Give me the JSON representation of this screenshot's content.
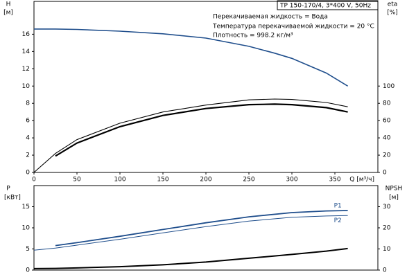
{
  "chart_data": [
    {
      "type": "line",
      "y_label": "H",
      "y_unit": "[м]",
      "y2_label": "eta",
      "y2_unit": "[%]",
      "x_label": "Q [м³/ч]",
      "annotations": [
        "TP 150-170/4, 3*400 V, 50Hz",
        "Перекачиваемая жидкость = Вода",
        "Температура перекачиваемой жидкости = 20 °C",
        "Плотность = 998.2 кг/м³"
      ],
      "xlim": [
        0,
        400
      ],
      "xticks": [
        0,
        50,
        100,
        150,
        200,
        250,
        300,
        350
      ],
      "ylim": [
        0,
        19.8
      ],
      "yticks": [
        0,
        2,
        4,
        6,
        8,
        10,
        12,
        14,
        16
      ],
      "y2lim": [
        0,
        198
      ],
      "y2ticks": [
        0,
        20,
        40,
        60,
        80,
        100
      ],
      "x": [
        0,
        25,
        50,
        100,
        150,
        200,
        250,
        280,
        300,
        340,
        365
      ],
      "series": [
        {
          "color": "#1f4e8c",
          "linewidth": 1.6,
          "values": [
            16.6,
            16.6,
            16.55,
            16.35,
            16.05,
            15.55,
            14.6,
            13.8,
            13.2,
            11.5,
            10.0
          ]
        },
        {
          "color": "#000000",
          "linewidth": 1.1,
          "axis": "y2",
          "values": [
            0,
            22,
            38,
            57,
            70,
            78,
            84,
            85,
            84.5,
            81,
            76
          ]
        },
        {
          "color": "#000000",
          "linewidth": 2.2,
          "axis": "y2",
          "values": [
            null,
            19,
            34,
            53,
            66,
            74,
            78.5,
            79,
            78.5,
            75,
            70
          ]
        }
      ]
    },
    {
      "type": "line",
      "y_label": "P",
      "y_unit": "[кВт]",
      "y2_label": "NPSH",
      "y2_unit": "[м]",
      "xlim": [
        0,
        400
      ],
      "ylim": [
        0,
        20
      ],
      "yticks": [
        0,
        5,
        10,
        15
      ],
      "y2lim": [
        0,
        40
      ],
      "y2ticks": [
        0,
        10,
        20,
        30
      ],
      "x": [
        0,
        25,
        50,
        100,
        150,
        200,
        250,
        300,
        340,
        365
      ],
      "series": [
        {
          "name": "P1",
          "color": "#1f4e8c",
          "linewidth": 1.8,
          "values": [
            null,
            5.8,
            6.5,
            8.0,
            9.6,
            11.2,
            12.6,
            13.6,
            14.0,
            14.1
          ]
        },
        {
          "name": "P2",
          "color": "#1f4e8c",
          "linewidth": 1.0,
          "values": [
            4.7,
            5.2,
            5.9,
            7.3,
            8.8,
            10.3,
            11.6,
            12.5,
            12.8,
            12.9
          ]
        },
        {
          "color": "#000000",
          "linewidth": 2.0,
          "axis": "y2",
          "values": [
            0.7,
            0.8,
            1.0,
            1.6,
            2.5,
            3.8,
            5.6,
            7.4,
            9.0,
            10.2
          ]
        }
      ]
    }
  ]
}
